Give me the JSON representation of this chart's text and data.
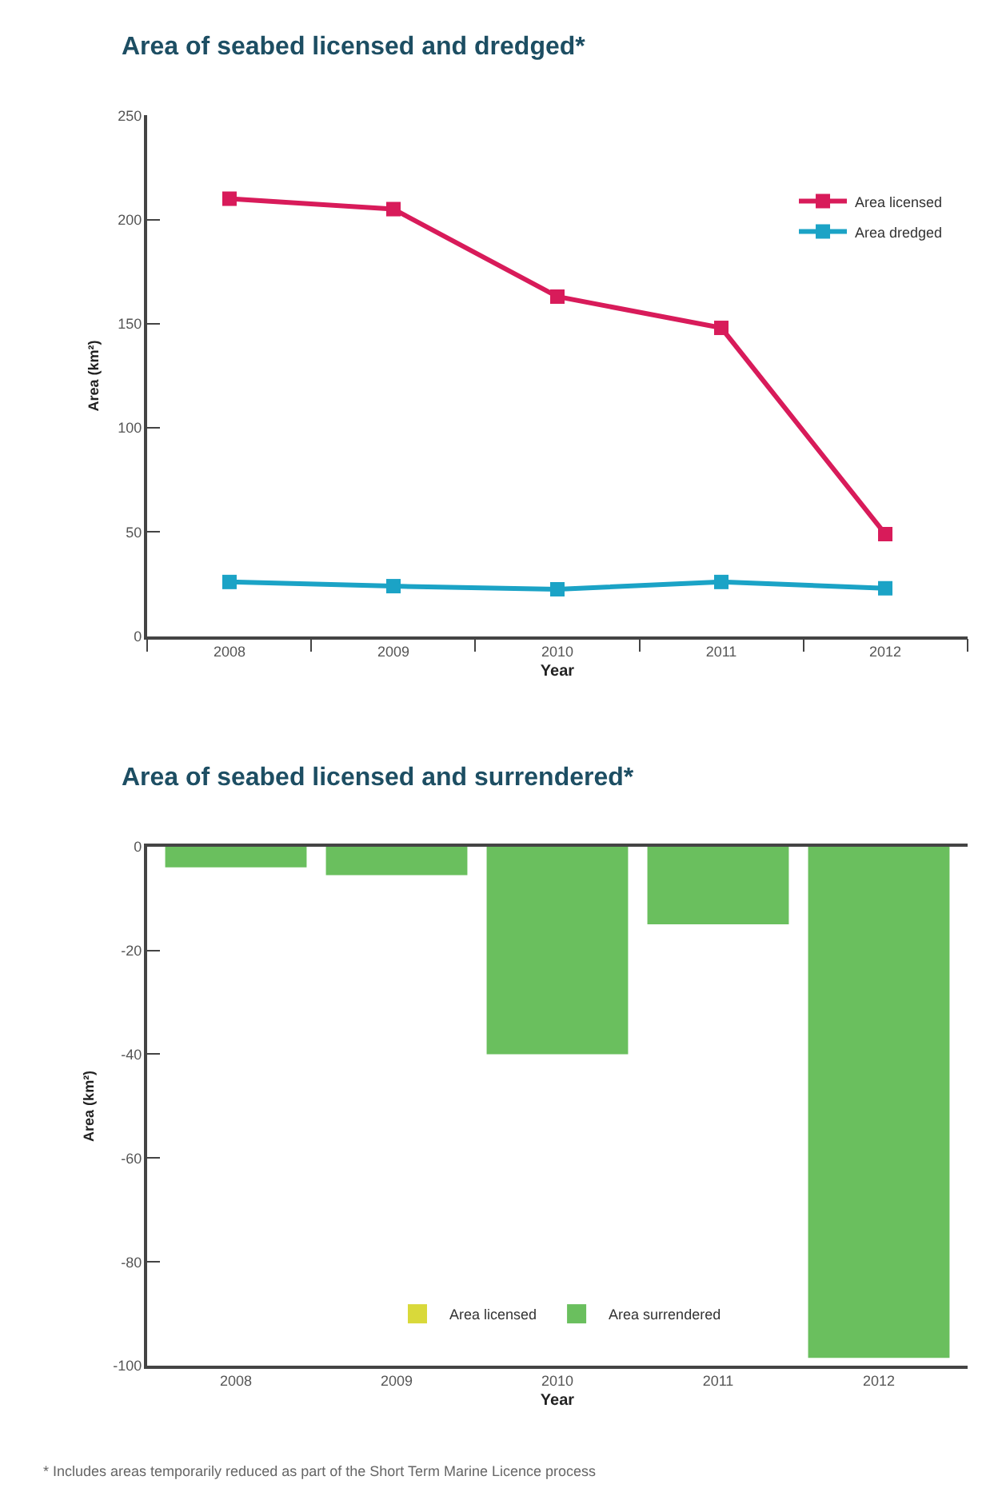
{
  "chart_data": [
    {
      "type": "line",
      "title": "Area of seabed licensed and dredged*",
      "xlabel": "Year",
      "ylabel": "Area (km²)",
      "categories": [
        "2008",
        "2009",
        "2010",
        "2011",
        "2012"
      ],
      "ylim": [
        0,
        250
      ],
      "yticks": [
        0,
        50,
        100,
        150,
        200,
        250
      ],
      "marker": "square",
      "line_style": "solid",
      "legend": "top right",
      "series": [
        {
          "name": "Area licensed",
          "color": "#d81b5a",
          "values": [
            210,
            205,
            163,
            148,
            49
          ]
        },
        {
          "name": "Area dredged",
          "color": "#1ba3c6",
          "values": [
            26,
            24,
            22.5,
            26,
            23
          ]
        }
      ]
    },
    {
      "type": "bar",
      "title": "Area of seabed licensed and surrendered*",
      "xlabel": "Year",
      "ylabel": "Area (km²)",
      "categories": [
        "2008",
        "2009",
        "2010",
        "2011",
        "2012"
      ],
      "ylim": [
        -100,
        0
      ],
      "yticks": [
        -100,
        -80,
        -60,
        -40,
        -20,
        0
      ],
      "legend": "bottom",
      "series": [
        {
          "name": "Area licensed",
          "color": "#d9d93a",
          "values": [
            null,
            null,
            null,
            null,
            null
          ]
        },
        {
          "name": "Area surrendered",
          "color": "#6abf5e",
          "values": [
            -4,
            -5.5,
            -40,
            -15,
            -98.5
          ]
        }
      ],
      "annotations": [
        "* Includes areas temporarily reduced as part of the Short Term Marine Licence process"
      ]
    }
  ]
}
